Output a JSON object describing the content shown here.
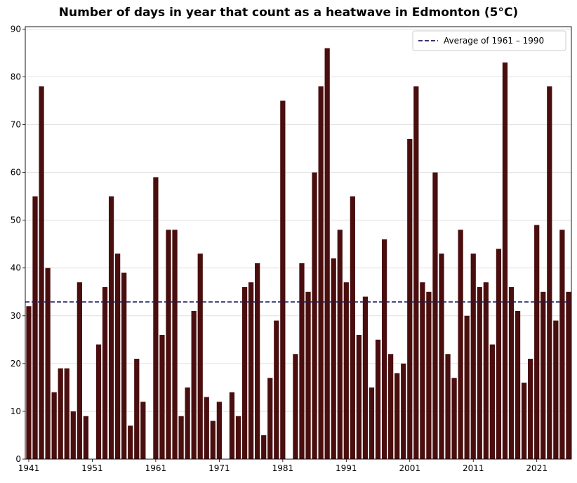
{
  "chart_data": {
    "type": "bar",
    "title": "Number of days in year that count as a heatwave in Edmonton (5°C)",
    "xlabel": "",
    "ylabel": "",
    "x": [
      1941,
      1942,
      1943,
      1944,
      1945,
      1946,
      1947,
      1948,
      1949,
      1950,
      1951,
      1952,
      1953,
      1954,
      1955,
      1956,
      1957,
      1958,
      1959,
      1960,
      1961,
      1962,
      1963,
      1964,
      1965,
      1966,
      1967,
      1968,
      1969,
      1970,
      1971,
      1972,
      1973,
      1974,
      1975,
      1976,
      1977,
      1978,
      1979,
      1980,
      1981,
      1982,
      1983,
      1984,
      1985,
      1986,
      1987,
      1988,
      1989,
      1990,
      1991,
      1992,
      1993,
      1994,
      1995,
      1996,
      1997,
      1998,
      1999,
      2000,
      2001,
      2002,
      2003,
      2004,
      2005,
      2006,
      2007,
      2008,
      2009,
      2010,
      2011,
      2012,
      2013,
      2014,
      2015,
      2016,
      2017,
      2018,
      2019,
      2020,
      2021,
      2022,
      2023,
      2024,
      2025,
      2026
    ],
    "values": [
      32,
      55,
      78,
      40,
      14,
      19,
      19,
      10,
      37,
      9,
      0,
      24,
      36,
      55,
      43,
      39,
      7,
      21,
      12,
      0,
      59,
      26,
      48,
      48,
      9,
      15,
      31,
      43,
      13,
      8,
      12,
      0,
      14,
      9,
      36,
      37,
      41,
      5,
      17,
      29,
      75,
      0,
      22,
      41,
      35,
      60,
      78,
      86,
      42,
      48,
      37,
      55,
      26,
      34,
      15,
      25,
      46,
      22,
      18,
      20,
      67,
      78,
      37,
      35,
      60,
      43,
      22,
      17,
      48,
      30,
      43,
      36,
      37,
      24,
      44,
      83,
      36,
      31,
      16,
      21,
      49,
      35,
      78,
      29,
      48,
      35
    ],
    "xticks": [
      "1941",
      "1951",
      "1961",
      "1971",
      "1981",
      "1991",
      "2001",
      "2011",
      "2021"
    ],
    "yticks": [
      "0",
      "10",
      "20",
      "30",
      "40",
      "50",
      "60",
      "70",
      "80",
      "90"
    ],
    "ylim": [
      0,
      90
    ],
    "bar_color": "#4a0e0e",
    "grid": "horizontal",
    "average": {
      "label": "Average of 1961 – 1990",
      "value": 32.9,
      "color": "#1a1a5e"
    },
    "legend": {
      "placement": "top-right"
    }
  }
}
